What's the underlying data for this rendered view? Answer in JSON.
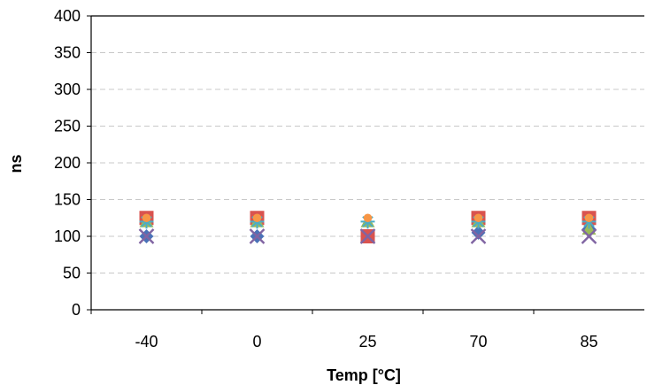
{
  "chart_data": {
    "type": "scatter",
    "title": "",
    "xlabel": "Temp [°C]",
    "ylabel": "ns",
    "categories": [
      "-40",
      "0",
      "25",
      "70",
      "85"
    ],
    "ylim": [
      0,
      400
    ],
    "yticks": [
      0,
      50,
      100,
      150,
      200,
      250,
      300,
      350,
      400
    ],
    "grid": true,
    "legend": "none",
    "series": [
      {
        "marker": "diamond",
        "color": "#4a72b8",
        "values": [
          100,
          100,
          100,
          105,
          110
        ]
      },
      {
        "marker": "square",
        "color": "#d9534f",
        "values": [
          125,
          125,
          100,
          125,
          125
        ]
      },
      {
        "marker": "triangle",
        "color": "#9bbb59",
        "values": [
          120,
          120,
          120,
          120,
          110
        ]
      },
      {
        "marker": "x",
        "color": "#8064a2",
        "values": [
          100,
          100,
          100,
          100,
          100
        ]
      },
      {
        "marker": "star",
        "color": "#4bacc6",
        "values": [
          120,
          120,
          120,
          120,
          120
        ]
      },
      {
        "marker": "circle",
        "color": "#f79646",
        "values": [
          125,
          125,
          125,
          125,
          125
        ]
      }
    ]
  }
}
